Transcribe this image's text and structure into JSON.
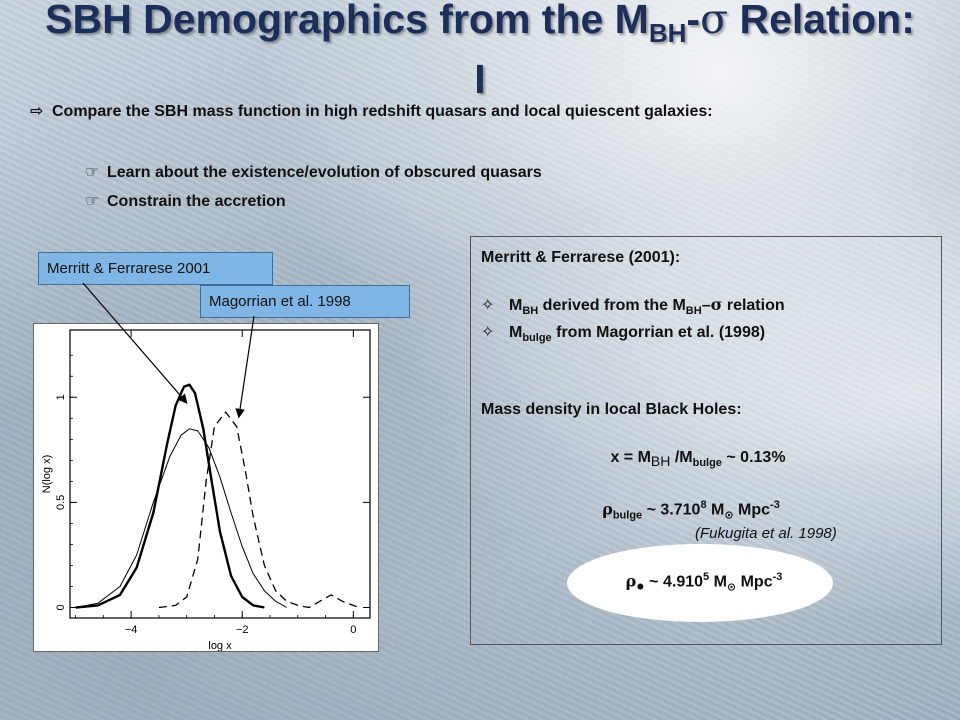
{
  "title": {
    "line1_prefix": "SBH Demographics from the M",
    "line1_sub": "BH",
    "line1_dash": "-",
    "line1_sigma": "σ",
    "line1_suffix": " Relation:",
    "line2": "I"
  },
  "bullets": {
    "main": "Compare the SBH mass function in high redshift quasars and local quiescent galaxies:",
    "sub": [
      "Learn about the existence/evolution of obscured quasars",
      "Constrain the accretion"
    ]
  },
  "labels": {
    "merritt": "Merritt & Ferrarese 2001",
    "magorrian": "Magorrian et al. 1998"
  },
  "chart_data": {
    "type": "line",
    "xlabel": "log x",
    "ylabel": "N(log x)",
    "xlim": [
      -5.1,
      0.3
    ],
    "ylim": [
      -0.05,
      1.32
    ],
    "xticks": [
      -4,
      -2,
      0
    ],
    "xtick_labels": [
      "−4",
      "−2",
      "0"
    ],
    "yticks": [
      0,
      0.5,
      1
    ],
    "ytick_labels": [
      "0",
      "0.5",
      "1"
    ],
    "series": [
      {
        "style": "solid-thick",
        "x": [
          -5.0,
          -4.6,
          -4.2,
          -3.9,
          -3.6,
          -3.35,
          -3.2,
          -3.05,
          -2.95,
          -2.85,
          -2.7,
          -2.55,
          -2.4,
          -2.2,
          -2.0,
          -1.8,
          -1.6
        ],
        "y": [
          0.0,
          0.01,
          0.06,
          0.19,
          0.45,
          0.78,
          0.96,
          1.05,
          1.06,
          1.02,
          0.85,
          0.6,
          0.36,
          0.15,
          0.05,
          0.01,
          0.0
        ]
      },
      {
        "style": "solid-thin",
        "x": [
          -5.0,
          -4.6,
          -4.2,
          -3.9,
          -3.6,
          -3.3,
          -3.1,
          -2.95,
          -2.8,
          -2.6,
          -2.4,
          -2.2,
          -2.0,
          -1.8,
          -1.6,
          -1.4,
          -1.2
        ],
        "y": [
          0.0,
          0.02,
          0.1,
          0.25,
          0.5,
          0.72,
          0.82,
          0.85,
          0.84,
          0.76,
          0.62,
          0.45,
          0.29,
          0.16,
          0.08,
          0.03,
          0.0
        ]
      },
      {
        "style": "dashed",
        "x": [
          -3.5,
          -3.2,
          -3.0,
          -2.8,
          -2.65,
          -2.5,
          -2.3,
          -2.1,
          -1.95,
          -1.8,
          -1.6,
          -1.4,
          -1.2,
          -1.0,
          -0.8,
          -0.6,
          -0.4,
          -0.2,
          0.0,
          0.1
        ],
        "y": [
          0.0,
          0.01,
          0.05,
          0.23,
          0.6,
          0.86,
          0.93,
          0.86,
          0.66,
          0.43,
          0.2,
          0.08,
          0.03,
          0.01,
          0.0,
          0.03,
          0.06,
          0.03,
          0.01,
          0.0
        ]
      }
    ]
  },
  "info": {
    "header": "Merritt & Ferrarese (2001):",
    "item1": {
      "m": "M",
      "sub": "BH",
      "text1": " derived from the M",
      "sub2": "BH",
      "dash": "–",
      "sigma": "σ",
      "text2": " relation"
    },
    "item2": {
      "m": "M",
      "sub": "bulge",
      "text": " from Magorrian et al. (1998)"
    },
    "mass_density_heading": "Mass density in local Black Holes:",
    "ratio": {
      "x": "x = M",
      "sub1": "BH",
      "mid": " /M",
      "sub2": "bulge",
      "tail": " ~ 0.13%"
    },
    "rho_bulge": {
      "rho": "ρ",
      "sub": "bulge",
      "mid": " ~ 3.7",
      "box": "",
      "num": "10",
      "exp": "8",
      "m": " M",
      "msub": "⊙",
      "tail": " Mpc",
      "texp": "-3"
    },
    "citation": "(Fukugita et al. 1998)",
    "rho_bh": {
      "rho": "ρ",
      "sub": "●",
      "mid": " ~ 4.9",
      "box": "",
      "num": "10",
      "exp": "5",
      "m": " M",
      "msub": "⊙",
      "tail": " Mpc",
      "texp": "-3"
    }
  }
}
